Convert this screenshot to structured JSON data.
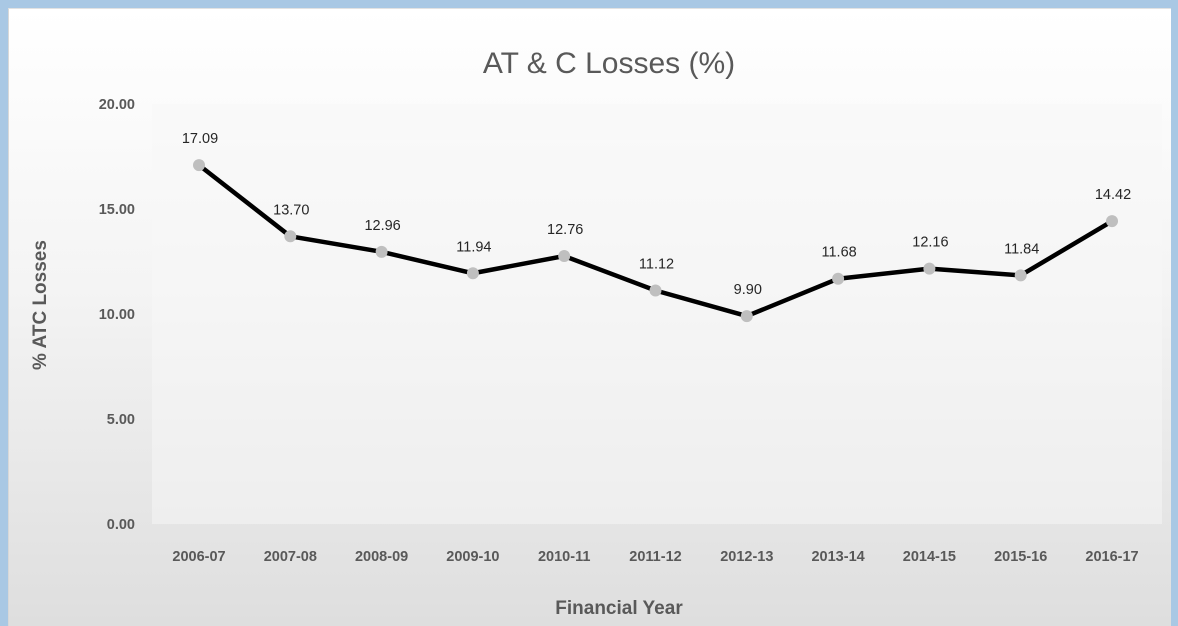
{
  "chart_data": {
    "type": "line",
    "title": "AT & C Losses (%)",
    "xlabel": "Financial Year",
    "ylabel": "% ATC Losses",
    "categories": [
      "2006-07",
      "2007-08",
      "2008-09",
      "2009-10",
      "2010-11",
      "2011-12",
      "2012-13",
      "2013-14",
      "2014-15",
      "2015-16",
      "2016-17"
    ],
    "values": [
      17.09,
      13.7,
      12.96,
      11.94,
      12.76,
      11.12,
      9.9,
      11.68,
      12.16,
      11.84,
      14.42
    ],
    "data_labels": [
      "17.09",
      "13.70",
      "12.96",
      "11.94",
      "12.76",
      "11.12",
      "9.90",
      "11.68",
      "12.16",
      "11.84",
      "14.42"
    ],
    "y_ticks": [
      "0.00",
      "5.00",
      "10.00",
      "15.00",
      "20.00"
    ],
    "ylim": [
      0,
      20
    ],
    "grid": false,
    "legend": "none",
    "colors": {
      "line": "#000000",
      "marker": "#bfbfbf",
      "background": "#a9c8e4"
    }
  }
}
